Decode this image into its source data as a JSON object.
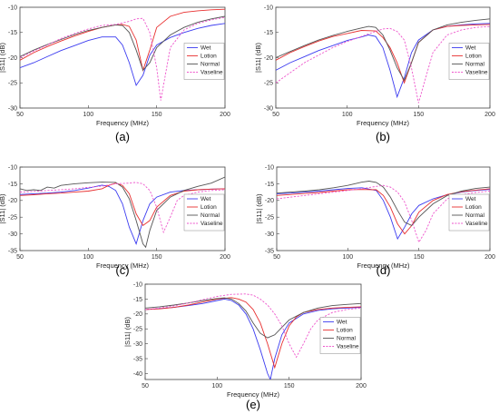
{
  "chart_data": [
    {
      "type": "line",
      "panel_label": "(a)",
      "xlabel": "Frequency (MHz)",
      "ylabel": "|S11| (dB)",
      "xlim": [
        50,
        200
      ],
      "ylim": [
        -30,
        -10
      ],
      "xticks": [
        50,
        100,
        150,
        200
      ],
      "yticks": [
        -30,
        -25,
        -20,
        -15,
        -10
      ],
      "legend_position": "right",
      "series": [
        {
          "name": "Wet",
          "color": "#3c3cf0",
          "dash": false,
          "x": [
            50,
            60,
            70,
            80,
            90,
            100,
            110,
            120,
            125,
            130,
            135,
            140,
            145,
            150,
            160,
            170,
            180,
            190,
            200
          ],
          "y": [
            -22,
            -21,
            -19.8,
            -18.6,
            -17.6,
            -16.6,
            -15.9,
            -15.9,
            -17.5,
            -21,
            -25.5,
            -23.5,
            -19.5,
            -17.5,
            -16,
            -15,
            -14.2,
            -13.6,
            -13.2
          ]
        },
        {
          "name": "Lotion",
          "color": "#e83030",
          "dash": false,
          "x": [
            50,
            60,
            70,
            80,
            90,
            100,
            110,
            120,
            125,
            130,
            135,
            140,
            145,
            150,
            160,
            170,
            180,
            190,
            200
          ],
          "y": [
            -20.5,
            -19,
            -17.8,
            -16.7,
            -15.7,
            -14.8,
            -14,
            -13.5,
            -13.4,
            -13.8,
            -16.5,
            -22.5,
            -18.5,
            -14,
            -11.8,
            -11,
            -10.7,
            -10.5,
            -10.4
          ]
        },
        {
          "name": "Normal",
          "color": "#555555",
          "dash": false,
          "x": [
            50,
            60,
            70,
            80,
            90,
            100,
            110,
            120,
            125,
            130,
            135,
            140,
            145,
            150,
            160,
            170,
            180,
            190,
            200
          ],
          "y": [
            -19.8,
            -18.5,
            -17.4,
            -16.4,
            -15.4,
            -14.6,
            -14,
            -13.5,
            -13.6,
            -15,
            -18.5,
            -22.5,
            -21,
            -18,
            -15.5,
            -14,
            -13,
            -12.3,
            -11.8
          ]
        },
        {
          "name": "Vaseline",
          "color": "#ee55cc",
          "dash": true,
          "x": [
            50,
            60,
            70,
            80,
            90,
            100,
            110,
            120,
            130,
            135,
            140,
            145,
            150,
            153,
            156,
            160,
            170,
            180,
            190,
            200
          ],
          "y": [
            -20,
            -18.7,
            -17.5,
            -16.2,
            -15.2,
            -14.3,
            -13.6,
            -13.4,
            -12.8,
            -12.3,
            -12.2,
            -15,
            -22,
            -28.5,
            -24,
            -18,
            -14.5,
            -13.2,
            -12.5,
            -12
          ]
        }
      ]
    },
    {
      "type": "line",
      "panel_label": "(b)",
      "xlabel": "Frequency (MHz)",
      "ylabel": "|S11| (dB)",
      "xlim": [
        50,
        200
      ],
      "ylim": [
        -30,
        -10
      ],
      "xticks": [
        50,
        100,
        150,
        200
      ],
      "yticks": [
        -30,
        -25,
        -20,
        -15,
        -10
      ],
      "legend_position": "right",
      "series": [
        {
          "name": "Wet",
          "color": "#3c3cf0",
          "dash": false,
          "x": [
            50,
            60,
            70,
            80,
            90,
            100,
            110,
            115,
            120,
            125,
            130,
            135,
            140,
            145,
            150,
            160,
            170,
            180,
            190,
            200
          ],
          "y": [
            -22.5,
            -21,
            -19.8,
            -18.6,
            -17.6,
            -16.6,
            -15.9,
            -15.5,
            -15.8,
            -18,
            -22.5,
            -27.8,
            -24,
            -19,
            -16.5,
            -14.5,
            -13.8,
            -13.5,
            -13.3,
            -13.2
          ]
        },
        {
          "name": "Lotion",
          "color": "#e83030",
          "dash": false,
          "x": [
            50,
            60,
            70,
            80,
            90,
            100,
            110,
            120,
            125,
            130,
            135,
            140,
            145,
            150,
            160,
            170,
            180,
            190,
            200
          ],
          "y": [
            -20.5,
            -19,
            -17.8,
            -16.7,
            -15.8,
            -15.2,
            -14.6,
            -14.7,
            -16,
            -18,
            -21,
            -25,
            -21,
            -17,
            -14.5,
            -13.8,
            -13.6,
            -13.5,
            -13.4
          ]
        },
        {
          "name": "Normal",
          "color": "#555555",
          "dash": false,
          "x": [
            50,
            60,
            70,
            80,
            90,
            100,
            110,
            115,
            120,
            125,
            130,
            135,
            140,
            145,
            150,
            160,
            170,
            180,
            190,
            200
          ],
          "y": [
            -20,
            -18.8,
            -17.6,
            -16.5,
            -15.6,
            -14.8,
            -14.1,
            -13.8,
            -14,
            -15.5,
            -18.5,
            -22,
            -24.5,
            -21,
            -17,
            -14.5,
            -13.5,
            -13,
            -12.6,
            -12.3
          ]
        },
        {
          "name": "Vaseline",
          "color": "#ee55cc",
          "dash": true,
          "x": [
            50,
            60,
            70,
            80,
            90,
            100,
            110,
            120,
            125,
            130,
            135,
            140,
            145,
            150,
            155,
            160,
            170,
            180,
            190,
            200
          ],
          "y": [
            -25,
            -23,
            -21,
            -19.5,
            -18,
            -16.8,
            -15.8,
            -14.8,
            -14.3,
            -14.2,
            -14.8,
            -16.5,
            -22,
            -29,
            -24,
            -19,
            -15.5,
            -14.5,
            -14,
            -13.8
          ]
        }
      ]
    },
    {
      "type": "line",
      "panel_label": "(c)",
      "xlabel": "Frequency (MHz)",
      "ylabel": "|S11| (dB)",
      "xlim": [
        50,
        200
      ],
      "ylim": [
        -35,
        -10
      ],
      "xticks": [
        50,
        100,
        150,
        200
      ],
      "yticks": [
        -35,
        -30,
        -25,
        -20,
        -15,
        -10
      ],
      "legend_position": "right",
      "series": [
        {
          "name": "Wet",
          "color": "#3c3cf0",
          "dash": false,
          "x": [
            50,
            60,
            70,
            80,
            90,
            100,
            110,
            115,
            120,
            125,
            130,
            135,
            140,
            145,
            150,
            160,
            170,
            180,
            190,
            200
          ],
          "y": [
            -18.2,
            -18,
            -17.8,
            -17.5,
            -17,
            -16.3,
            -15.4,
            -15.8,
            -17,
            -21,
            -28,
            -33,
            -26,
            -21,
            -19,
            -17.5,
            -17,
            -16.8,
            -16.6,
            -16.5
          ]
        },
        {
          "name": "Lotion",
          "color": "#e83030",
          "dash": false,
          "x": [
            50,
            60,
            70,
            80,
            90,
            100,
            110,
            115,
            120,
            125,
            130,
            135,
            140,
            145,
            150,
            160,
            170,
            180,
            190,
            200
          ],
          "y": [
            -18.5,
            -18.3,
            -18,
            -17.8,
            -17.5,
            -17.2,
            -16.5,
            -15.5,
            -14.8,
            -15.5,
            -18,
            -24,
            -27.5,
            -26,
            -22,
            -18.5,
            -17.2,
            -16.8,
            -16.6,
            -16.5
          ]
        },
        {
          "name": "Normal",
          "color": "#555555",
          "dash": false,
          "x": [
            50,
            55,
            60,
            65,
            70,
            75,
            80,
            90,
            100,
            110,
            120,
            125,
            130,
            135,
            140,
            142,
            145,
            150,
            160,
            170,
            180,
            190,
            200
          ],
          "y": [
            -16.5,
            -17,
            -16.8,
            -17,
            -16,
            -16.3,
            -15.5,
            -15,
            -14.7,
            -14.5,
            -14.6,
            -16,
            -19.5,
            -26,
            -33,
            -34,
            -29,
            -23,
            -19,
            -17,
            -15.8,
            -14.8,
            -13
          ]
        },
        {
          "name": "Vaseline",
          "color": "#ee55cc",
          "dash": true,
          "x": [
            50,
            60,
            70,
            80,
            90,
            100,
            110,
            120,
            130,
            135,
            140,
            145,
            150,
            155,
            160,
            165,
            170,
            180,
            190,
            200
          ],
          "y": [
            -17.5,
            -17.3,
            -17,
            -16.8,
            -16.5,
            -16.1,
            -15.7,
            -15,
            -14.8,
            -14.6,
            -15,
            -17,
            -22,
            -29.5,
            -25,
            -20,
            -18.5,
            -17.5,
            -17,
            -16.8
          ]
        }
      ]
    },
    {
      "type": "line",
      "panel_label": "(d)",
      "xlabel": "Frequency (MHz)",
      "ylabel": "|S11| (dB)",
      "xlim": [
        50,
        200
      ],
      "ylim": [
        -35,
        -10
      ],
      "xticks": [
        50,
        100,
        150,
        200
      ],
      "yticks": [
        -35,
        -30,
        -25,
        -20,
        -15,
        -10
      ],
      "legend_position": "right",
      "series": [
        {
          "name": "Wet",
          "color": "#3c3cf0",
          "dash": false,
          "x": [
            50,
            60,
            70,
            80,
            90,
            100,
            110,
            120,
            125,
            130,
            135,
            140,
            145,
            150,
            160,
            170,
            180,
            190,
            200
          ],
          "y": [
            -18,
            -17.8,
            -17.5,
            -17.2,
            -16.8,
            -16.4,
            -16.2,
            -17,
            -20,
            -25,
            -31.5,
            -28,
            -24,
            -21.5,
            -19.5,
            -18.3,
            -17.5,
            -17,
            -16.7
          ]
        },
        {
          "name": "Lotion",
          "color": "#e83030",
          "dash": false,
          "x": [
            50,
            60,
            70,
            80,
            90,
            100,
            110,
            120,
            125,
            130,
            135,
            140,
            145,
            150,
            160,
            170,
            180,
            190,
            200
          ],
          "y": [
            -18.5,
            -18.2,
            -17.9,
            -17.6,
            -17.2,
            -16.8,
            -16.7,
            -16.8,
            -18.5,
            -22,
            -27,
            -30,
            -27.5,
            -23.5,
            -20,
            -18.2,
            -17.4,
            -16.9,
            -16.5
          ]
        },
        {
          "name": "Normal",
          "color": "#555555",
          "dash": false,
          "x": [
            50,
            60,
            70,
            80,
            90,
            100,
            110,
            115,
            120,
            125,
            130,
            135,
            140,
            145,
            150,
            160,
            170,
            180,
            190,
            200
          ],
          "y": [
            -17.8,
            -17.5,
            -17.2,
            -16.8,
            -16.2,
            -15.5,
            -14.5,
            -14.2,
            -14.6,
            -16,
            -19,
            -23,
            -26.5,
            -27.5,
            -25,
            -21,
            -18.5,
            -17.2,
            -16.4,
            -16
          ]
        },
        {
          "name": "Vaseline",
          "color": "#ee55cc",
          "dash": true,
          "x": [
            50,
            60,
            70,
            80,
            90,
            100,
            110,
            120,
            125,
            130,
            135,
            140,
            145,
            150,
            155,
            160,
            170,
            180,
            190,
            200
          ],
          "y": [
            -19.5,
            -19,
            -18.5,
            -18,
            -17.5,
            -17,
            -16.5,
            -15.8,
            -15.5,
            -16,
            -17.5,
            -20.5,
            -26,
            -32.5,
            -29,
            -24,
            -19.5,
            -18.3,
            -17.6,
            -17.2
          ]
        }
      ]
    },
    {
      "type": "line",
      "panel_label": "(e)",
      "xlabel": "Frequency (MHz)",
      "ylabel": "|S11| (dB)",
      "xlim": [
        50,
        200
      ],
      "ylim": [
        -42,
        -10
      ],
      "xticks": [
        50,
        100,
        150,
        200
      ],
      "yticks": [
        -40,
        -35,
        -30,
        -25,
        -20,
        -15,
        -10
      ],
      "legend_position": "right",
      "series": [
        {
          "name": "Wet",
          "color": "#3c3cf0",
          "dash": false,
          "x": [
            50,
            60,
            70,
            80,
            90,
            100,
            105,
            110,
            115,
            120,
            125,
            130,
            135,
            137,
            140,
            145,
            150,
            160,
            170,
            180,
            190,
            200
          ],
          "y": [
            -18.5,
            -18.2,
            -17.8,
            -17.2,
            -16.5,
            -15.5,
            -15,
            -15.5,
            -17,
            -20,
            -25,
            -32,
            -40,
            -42,
            -35,
            -27,
            -23,
            -20,
            -18.8,
            -18.3,
            -18,
            -17.8
          ]
        },
        {
          "name": "Lotion",
          "color": "#e83030",
          "dash": false,
          "x": [
            50,
            60,
            70,
            80,
            90,
            100,
            110,
            115,
            120,
            125,
            130,
            135,
            140,
            145,
            150,
            155,
            160,
            170,
            180,
            190,
            200
          ],
          "y": [
            -18.5,
            -18.3,
            -17.8,
            -17,
            -16,
            -15,
            -14.5,
            -15,
            -16,
            -18.5,
            -23,
            -30,
            -38,
            -30,
            -24,
            -21,
            -19.5,
            -18.5,
            -18,
            -17.8,
            -17.6
          ]
        },
        {
          "name": "Normal",
          "color": "#555555",
          "dash": false,
          "x": [
            50,
            60,
            70,
            80,
            90,
            100,
            105,
            110,
            115,
            120,
            125,
            130,
            135,
            140,
            145,
            150,
            160,
            170,
            180,
            190,
            200
          ],
          "y": [
            -18,
            -17.6,
            -17,
            -16.3,
            -15.5,
            -14.8,
            -14.6,
            -15,
            -16.5,
            -19,
            -23,
            -26.5,
            -28,
            -27,
            -24.5,
            -22,
            -19.5,
            -18,
            -17.2,
            -16.8,
            -16.5
          ]
        },
        {
          "name": "Vaseline",
          "color": "#ee55cc",
          "dash": true,
          "x": [
            50,
            60,
            70,
            80,
            90,
            100,
            110,
            120,
            125,
            130,
            135,
            140,
            145,
            150,
            155,
            160,
            165,
            170,
            180,
            190,
            200
          ],
          "y": [
            -18.5,
            -18,
            -17.3,
            -16.3,
            -15.2,
            -14.1,
            -13.4,
            -13.3,
            -13.7,
            -15,
            -17,
            -20,
            -24,
            -30,
            -34.5,
            -30,
            -25,
            -22,
            -19.5,
            -18.5,
            -18
          ]
        }
      ]
    }
  ]
}
